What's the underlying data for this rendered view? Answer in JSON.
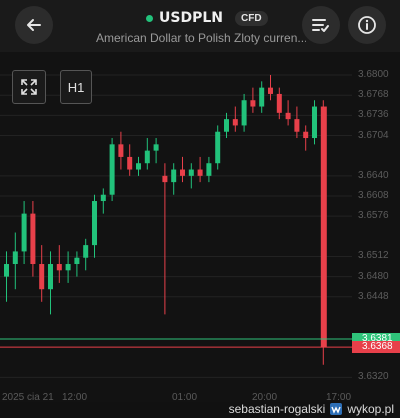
{
  "header": {
    "symbol": "USDPLN",
    "badge": "CFD",
    "subtitle": "American Dollar to Polish Zloty curren..."
  },
  "toolbar": {
    "expand_icon": "expand-arrows-icon",
    "timeframe": "H1"
  },
  "price_axis": [
    "3.6800",
    "3.6768",
    "3.6736",
    "3.6704",
    "3.6640",
    "3.6608",
    "3.6576",
    "3.6512",
    "3.6480",
    "3.6448",
    "3.6320"
  ],
  "time_axis": [
    "2025 cia 21",
    "12:00",
    "01:00",
    "20:00",
    "17:00"
  ],
  "price_tags": {
    "bid": "3.6381",
    "ask": "3.6368",
    "bid_color": "#2fc37a",
    "ask_color": "#e8404a"
  },
  "watermark": {
    "text": "sebastian-rogalski",
    "site": "wykop.pl"
  },
  "colors": {
    "up": "#22c27b",
    "down": "#e8404a"
  },
  "chart_data": {
    "type": "candlestick",
    "timeframe": "H1",
    "candles": [
      {
        "o": 3.648,
        "h": 3.652,
        "l": 3.644,
        "c": 3.65
      },
      {
        "o": 3.65,
        "h": 3.655,
        "l": 3.646,
        "c": 3.652
      },
      {
        "o": 3.652,
        "h": 3.66,
        "l": 3.65,
        "c": 3.658
      },
      {
        "o": 3.658,
        "h": 3.66,
        "l": 3.648,
        "c": 3.65
      },
      {
        "o": 3.65,
        "h": 3.653,
        "l": 3.644,
        "c": 3.646
      },
      {
        "o": 3.646,
        "h": 3.652,
        "l": 3.642,
        "c": 3.65
      },
      {
        "o": 3.65,
        "h": 3.653,
        "l": 3.647,
        "c": 3.649
      },
      {
        "o": 3.649,
        "h": 3.652,
        "l": 3.647,
        "c": 3.65
      },
      {
        "o": 3.65,
        "h": 3.652,
        "l": 3.648,
        "c": 3.651
      },
      {
        "o": 3.651,
        "h": 3.654,
        "l": 3.649,
        "c": 3.653
      },
      {
        "o": 3.653,
        "h": 3.661,
        "l": 3.651,
        "c": 3.66
      },
      {
        "o": 3.66,
        "h": 3.662,
        "l": 3.658,
        "c": 3.661
      },
      {
        "o": 3.661,
        "h": 3.67,
        "l": 3.66,
        "c": 3.669
      },
      {
        "o": 3.669,
        "h": 3.671,
        "l": 3.665,
        "c": 3.667
      },
      {
        "o": 3.667,
        "h": 3.669,
        "l": 3.664,
        "c": 3.665
      },
      {
        "o": 3.665,
        "h": 3.667,
        "l": 3.664,
        "c": 3.666
      },
      {
        "o": 3.666,
        "h": 3.67,
        "l": 3.665,
        "c": 3.668
      },
      {
        "o": 3.668,
        "h": 3.67,
        "l": 3.666,
        "c": 3.669
      },
      {
        "o": 3.664,
        "h": 3.666,
        "l": 3.642,
        "c": 3.663
      },
      {
        "o": 3.663,
        "h": 3.666,
        "l": 3.661,
        "c": 3.665
      },
      {
        "o": 3.665,
        "h": 3.667,
        "l": 3.663,
        "c": 3.664
      },
      {
        "o": 3.664,
        "h": 3.666,
        "l": 3.662,
        "c": 3.665
      },
      {
        "o": 3.665,
        "h": 3.667,
        "l": 3.663,
        "c": 3.664
      },
      {
        "o": 3.664,
        "h": 3.667,
        "l": 3.663,
        "c": 3.666
      },
      {
        "o": 3.666,
        "h": 3.672,
        "l": 3.665,
        "c": 3.671
      },
      {
        "o": 3.671,
        "h": 3.674,
        "l": 3.67,
        "c": 3.673
      },
      {
        "o": 3.673,
        "h": 3.675,
        "l": 3.671,
        "c": 3.672
      },
      {
        "o": 3.672,
        "h": 3.677,
        "l": 3.671,
        "c": 3.676
      },
      {
        "o": 3.676,
        "h": 3.678,
        "l": 3.674,
        "c": 3.675
      },
      {
        "o": 3.675,
        "h": 3.679,
        "l": 3.674,
        "c": 3.678
      },
      {
        "o": 3.678,
        "h": 3.68,
        "l": 3.676,
        "c": 3.677
      },
      {
        "o": 3.677,
        "h": 3.678,
        "l": 3.673,
        "c": 3.674
      },
      {
        "o": 3.674,
        "h": 3.676,
        "l": 3.672,
        "c": 3.673
      },
      {
        "o": 3.673,
        "h": 3.675,
        "l": 3.67,
        "c": 3.671
      },
      {
        "o": 3.671,
        "h": 3.672,
        "l": 3.668,
        "c": 3.67
      },
      {
        "o": 3.67,
        "h": 3.676,
        "l": 3.669,
        "c": 3.675
      },
      {
        "o": 3.675,
        "h": 3.676,
        "l": 3.634,
        "c": 3.6368
      }
    ]
  }
}
